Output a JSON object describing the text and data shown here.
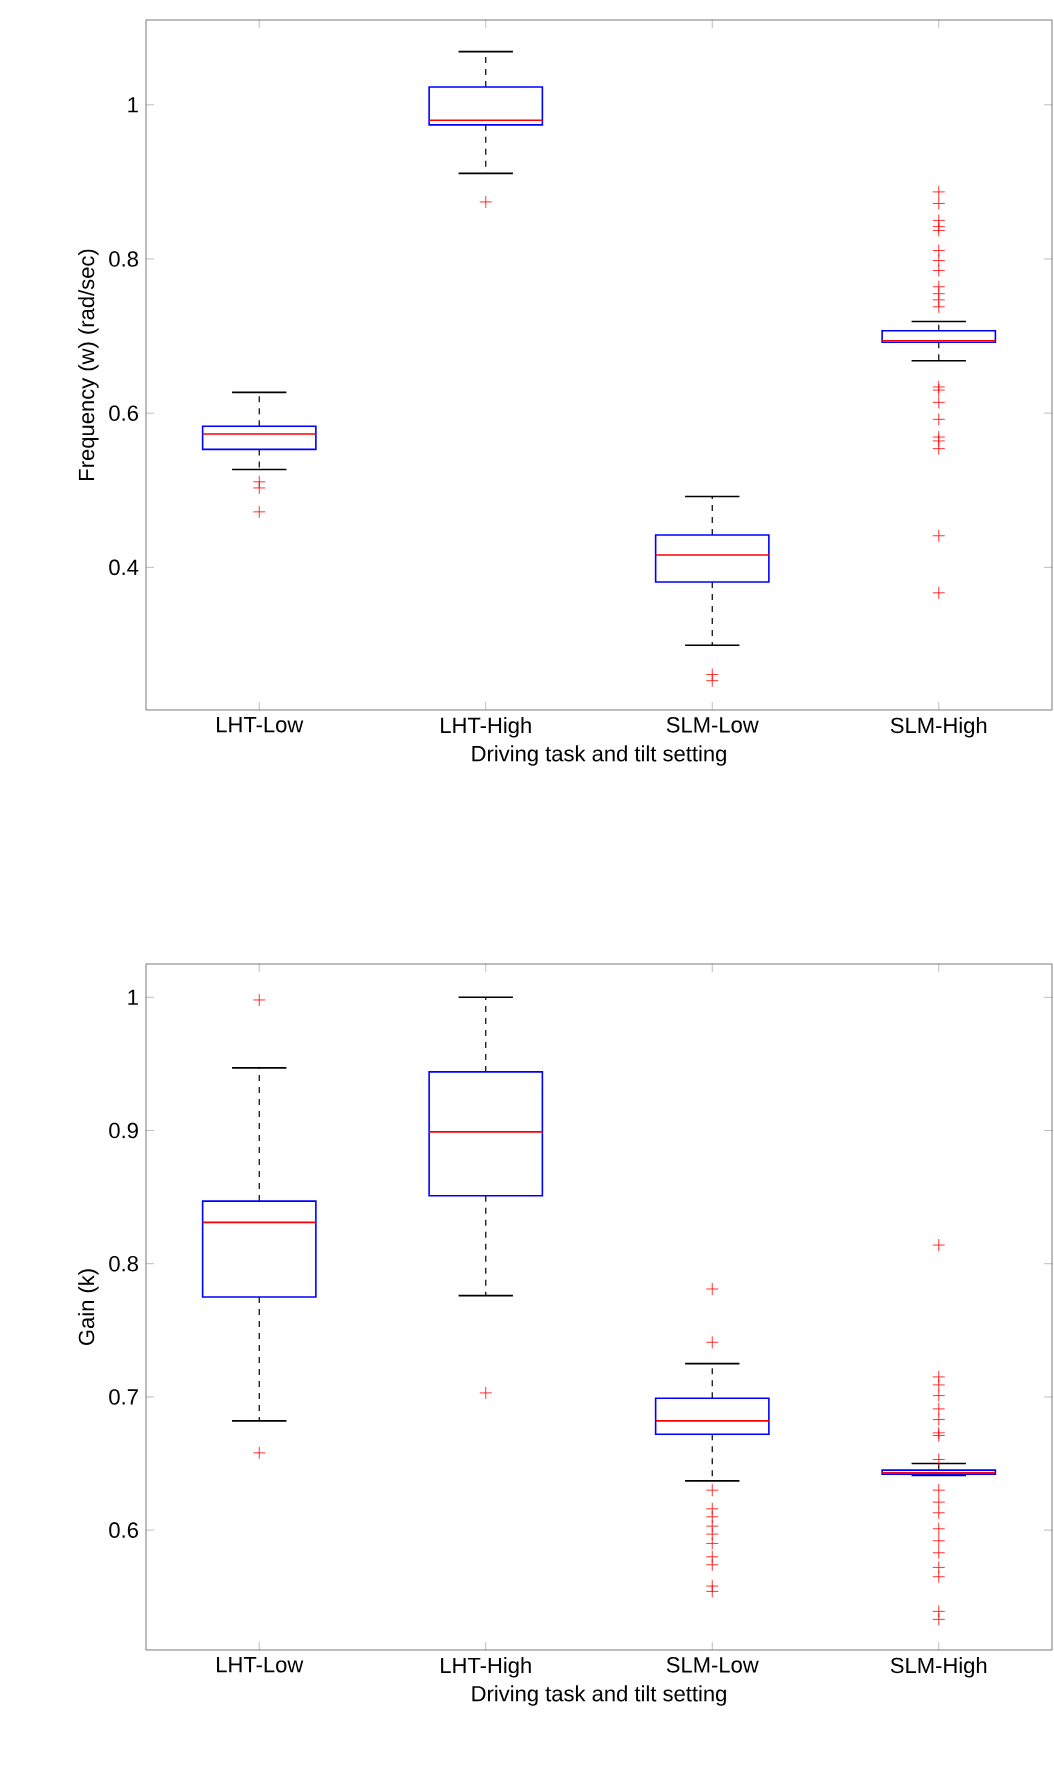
{
  "chart_data": [
    {
      "type": "box",
      "xlabel": "Driving task and tilt setting",
      "ylabel": "Frequency (w) (rad/sec)",
      "categories": [
        "LHT-Low",
        "LHT-High",
        "SLM-Low",
        "SLM-High"
      ],
      "color": "#0000ff",
      "ylim": [
        0.215,
        1.11
      ],
      "yticks": [
        0.4,
        0.6,
        0.8,
        1
      ],
      "marker": "cross",
      "boxes": [
        {
          "low": 0.527,
          "q1": 0.553,
          "median": 0.573,
          "q3": 0.583,
          "high": 0.627,
          "outliers": [
            0.511,
            0.503,
            0.472
          ]
        },
        {
          "low": 0.911,
          "q1": 0.974,
          "median": 0.98,
          "q3": 1.023,
          "high": 1.069,
          "outliers": [
            0.874
          ]
        },
        {
          "low": 0.299,
          "q1": 0.381,
          "median": 0.416,
          "q3": 0.442,
          "high": 0.492,
          "outliers": [
            0.261,
            0.253
          ]
        },
        {
          "low": 0.668,
          "q1": 0.692,
          "median": 0.694,
          "q3": 0.707,
          "high": 0.719,
          "outliers": [
            0.887,
            0.872,
            0.85,
            0.842,
            0.837,
            0.811,
            0.798,
            0.785,
            0.764,
            0.755,
            0.747,
            0.738,
            0.634,
            0.63,
            0.614,
            0.592,
            0.569,
            0.564,
            0.554,
            0.441,
            0.367
          ]
        }
      ]
    },
    {
      "type": "box",
      "xlabel": "Driving task and tilt setting",
      "ylabel": "Gain (k)",
      "categories": [
        "LHT-Low",
        "LHT-High",
        "SLM-Low",
        "SLM-High"
      ],
      "color": "#0000ff",
      "ylim": [
        0.51,
        1.025
      ],
      "yticks": [
        0.6,
        0.7,
        0.8,
        0.9,
        1
      ],
      "marker": "cross",
      "boxes": [
        {
          "low": 0.682,
          "q1": 0.775,
          "median": 0.831,
          "q3": 0.847,
          "high": 0.947,
          "outliers": [
            0.998,
            0.658
          ]
        },
        {
          "low": 0.776,
          "q1": 0.851,
          "median": 0.899,
          "q3": 0.944,
          "high": 1.0,
          "outliers": [
            0.703
          ]
        },
        {
          "low": 0.637,
          "q1": 0.672,
          "median": 0.682,
          "q3": 0.699,
          "high": 0.725,
          "outliers": [
            0.781,
            0.741,
            0.63,
            0.616,
            0.61,
            0.603,
            0.597,
            0.59,
            0.58,
            0.574,
            0.558,
            0.554
          ]
        },
        {
          "low": 0.641,
          "q1": 0.642,
          "median": 0.643,
          "q3": 0.645,
          "high": 0.65,
          "outliers": [
            0.814,
            0.715,
            0.709,
            0.701,
            0.691,
            0.683,
            0.673,
            0.671,
            0.653,
            0.63,
            0.621,
            0.613,
            0.601,
            0.592,
            0.583,
            0.572,
            0.565,
            0.539,
            0.533
          ]
        }
      ]
    }
  ]
}
